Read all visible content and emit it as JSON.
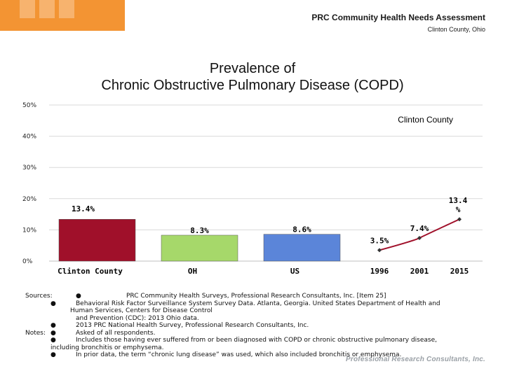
{
  "header": {
    "title": "PRC Community Health Needs Assessment",
    "subtitle": "Clinton County, Ohio"
  },
  "colors": {
    "orange": "#f39433",
    "clinton_bar": "#a0102a",
    "oh_bar": "#a6d86a",
    "us_bar": "#5b85d9",
    "trend_line": "#a0102a"
  },
  "chart_data": {
    "type": "bar",
    "title_line1": "Prevalence of",
    "title_line2": "Chronic Obstructive Pulmonary Disease (COPD)",
    "y_ticks": [
      "50%",
      "40%",
      "30%",
      "20%",
      "10%",
      "0%"
    ],
    "y_tick_values": [
      50,
      40,
      30,
      20,
      10,
      0
    ],
    "ylim": [
      0,
      50
    ],
    "gridlines": true,
    "categories": [
      "Clinton County",
      "OH",
      "US"
    ],
    "values": [
      13.4,
      8.3,
      8.6
    ],
    "value_labels": [
      "13.4%",
      "8.3%",
      "8.6%"
    ],
    "trend": {
      "label": "Clinton County",
      "type": "line",
      "years": [
        "1996",
        "2001",
        "2015"
      ],
      "values": [
        3.5,
        7.4,
        13.4
      ],
      "value_labels": [
        "3.5%",
        "7.4%",
        "13.4 %"
      ]
    }
  },
  "notes": {
    "sources_label": "Sources:",
    "bullet": "●",
    "source1": "PRC Community Health Surveys, Professional Research Consultants, Inc. [Item 25]",
    "source2_line1": "Behavioral Risk Factor Surveillance System Survey Data. Atlanta, Georgia. United States Department of Health and",
    "source2_line2": "Human Services, Centers for Disease Control",
    "source2_line3": "and Prevention (CDC): 2013 Ohio data.",
    "source3": "2013 PRC National Health Survey, Professional Research Consultants, Inc.",
    "notes_label": "Notes:",
    "note1": "Asked of all respondents.",
    "note2_line1": "Includes those having ever suffered from or been diagnosed with COPD or chronic obstructive pulmonary disease,",
    "note2_line2": "including bronchitis or emphysema.",
    "note3": "In prior data, the term “chronic lung disease” was used, which also included bronchitis or emphysema."
  },
  "footer_logo": "Professional Research Consultants, Inc."
}
